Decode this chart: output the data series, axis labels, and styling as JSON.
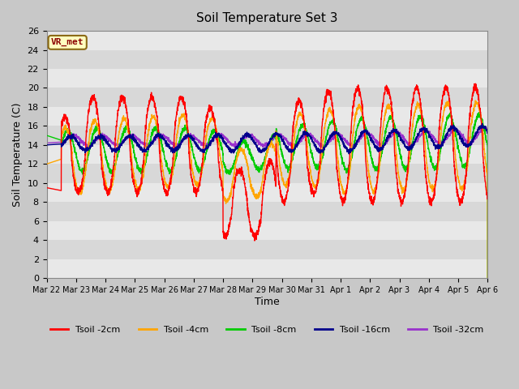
{
  "title": "Soil Temperature Set 3",
  "xlabel": "Time",
  "ylabel": "Soil Temperature (C)",
  "ylim": [
    0,
    26
  ],
  "line_colors": {
    "2cm": "#ff0000",
    "4cm": "#ffa500",
    "8cm": "#00cc00",
    "16cm": "#00008b",
    "32cm": "#9932cc"
  },
  "legend_labels": [
    "Tsoil -2cm",
    "Tsoil -4cm",
    "Tsoil -8cm",
    "Tsoil -16cm",
    "Tsoil -32cm"
  ],
  "vr_met_label": "VR_met",
  "xticklabels": [
    "Mar 22",
    "Mar 23",
    "Mar 24",
    "Mar 25",
    "Mar 26",
    "Mar 27",
    "Mar 28",
    "Mar 29",
    "Mar 30",
    "Mar 31",
    "Apr 1",
    "Apr 2",
    "Apr 3",
    "Apr 4",
    "Apr 5",
    "Apr 6"
  ],
  "band_colors": [
    "#e8e8e8",
    "#d8d8d8"
  ]
}
